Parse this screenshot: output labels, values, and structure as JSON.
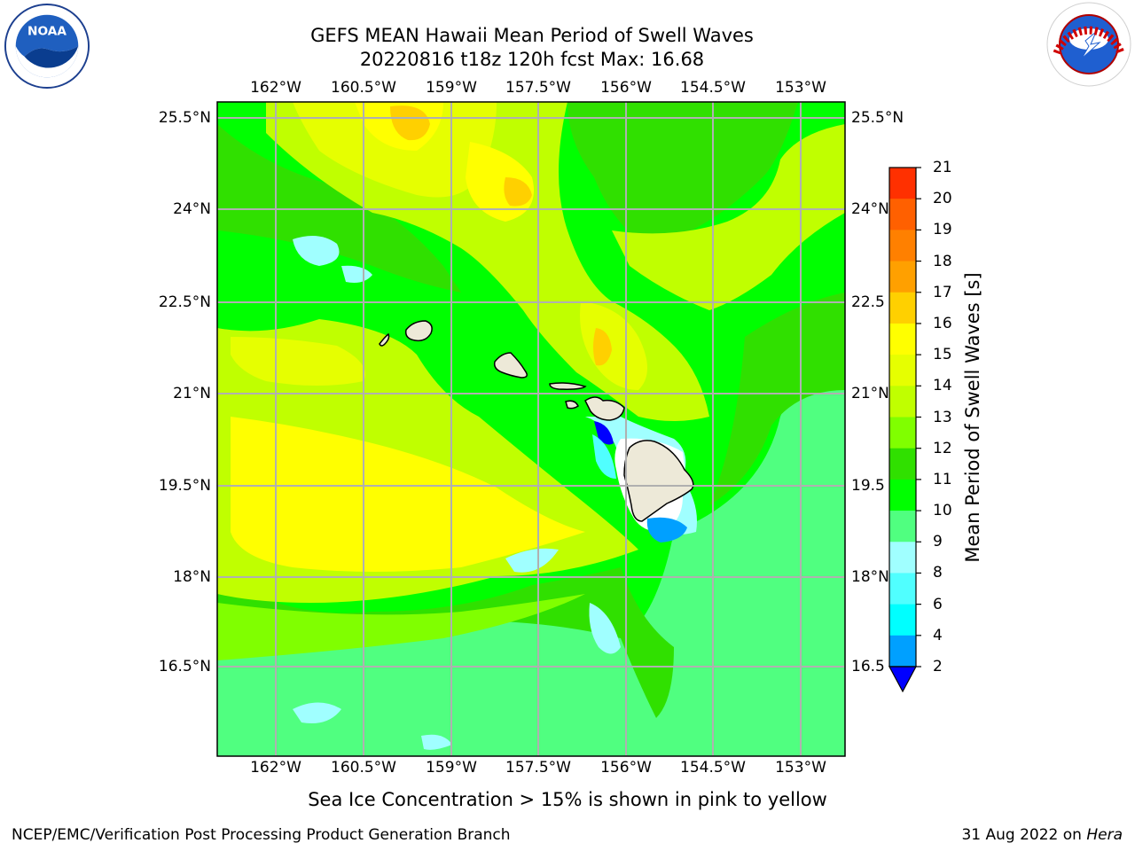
{
  "title": {
    "line1": "GEFS MEAN Hawaii Mean Period of Swell Waves",
    "line2": "20220816 t18z 120h fcst   Max: 16.68"
  },
  "map": {
    "lon_labels": [
      "162°W",
      "160.5°W",
      "159°W",
      "157.5°W",
      "156°W",
      "154.5°W",
      "153°W"
    ],
    "lat_labels": [
      "25.5°N",
      "24°N",
      "22.5°N",
      "21°N",
      "19.5°N",
      "18°N",
      "16.5°N"
    ],
    "lat_labels_right": [
      "25.5°N",
      "24°N",
      "22.5",
      "21°N",
      "19.5",
      "18°N",
      "16.5"
    ],
    "islands": [
      "Niihau",
      "Kauai",
      "Oahu",
      "Molokai",
      "Lanai",
      "Maui",
      "Hawaii"
    ]
  },
  "colorbar": {
    "label": "Mean Period of Swell Waves [s]",
    "ticks": [
      "21",
      "20",
      "19",
      "18",
      "17",
      "16",
      "15",
      "14",
      "13",
      "12",
      "11",
      "10",
      "9",
      "8",
      "6",
      "4",
      "2"
    ],
    "colors": [
      "#ff0000",
      "#ff3000",
      "#ff6000",
      "#ff8000",
      "#ffa000",
      "#ffd000",
      "#ffff00",
      "#e6ff00",
      "#c0ff00",
      "#80ff00",
      "#30e000",
      "#00ff00",
      "#50ff80",
      "#a0ffff",
      "#50ffff",
      "#00ffff",
      "#00a0ff",
      "#0000ff"
    ],
    "under_color": "#0000ff"
  },
  "caption": "Sea Ice Concentration > 15% is shown in pink to yellow",
  "footer": {
    "left": "NCEP/EMC/Verification Post Processing Product Generation Branch",
    "right_date": "31 Aug 2022 on",
    "right_host": "Hera"
  }
}
